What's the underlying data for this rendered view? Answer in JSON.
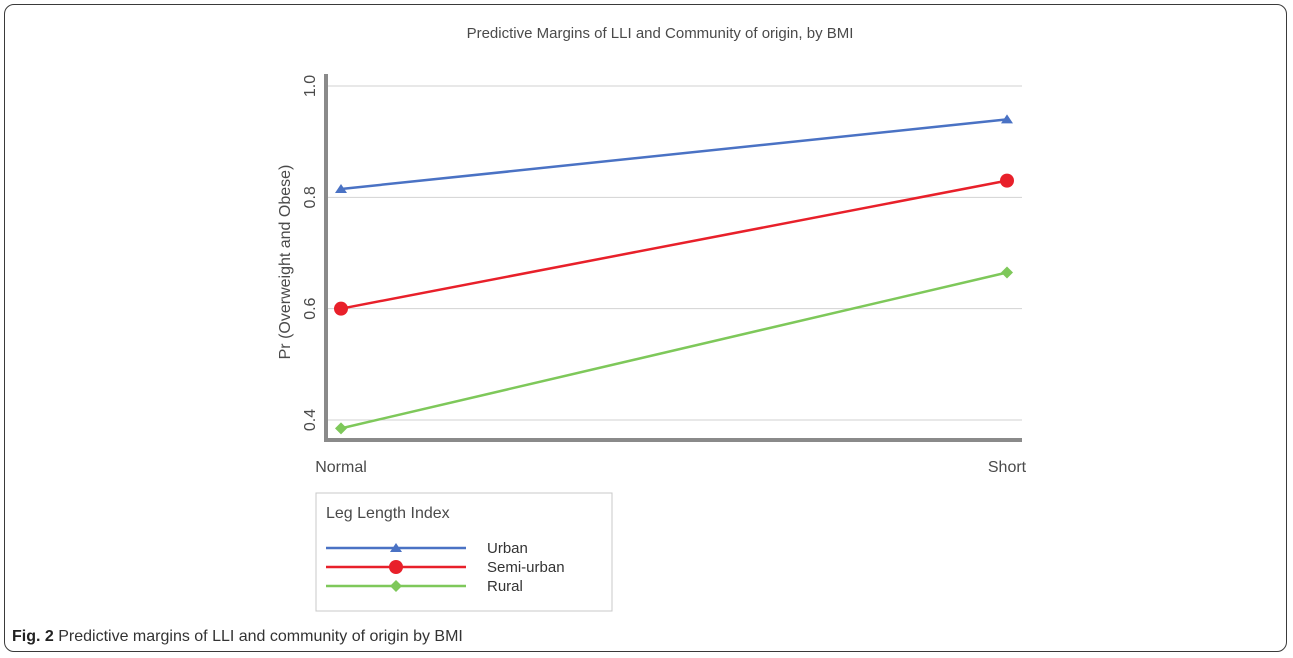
{
  "chart_data": {
    "type": "line",
    "title": "Predictive Margins of LLI and Community of origin, by BMI",
    "xlabel": "",
    "ylabel": "Pr (Overweight and Obese)",
    "categories": [
      "Normal",
      "Short"
    ],
    "y_ticks": [
      "0.4",
      "0.6",
      "0.8",
      "1.0"
    ],
    "ylim": [
      0.38,
      1.0
    ],
    "grid": true,
    "legend_title": "Leg Length Index",
    "legend_position": "bottom-left",
    "series": [
      {
        "name": "Urban",
        "values": [
          0.815,
          0.94
        ],
        "color": "#4a72c4",
        "marker": "triangle"
      },
      {
        "name": "Semi-urban",
        "values": [
          0.6,
          0.83
        ],
        "color": "#e8202a",
        "marker": "circle"
      },
      {
        "name": "Rural",
        "values": [
          0.385,
          0.665
        ],
        "color": "#7ec85a",
        "marker": "diamond"
      }
    ]
  },
  "caption": {
    "label": "Fig. 2",
    "text": "Predictive margins of LLI and community of origin by BMI"
  }
}
